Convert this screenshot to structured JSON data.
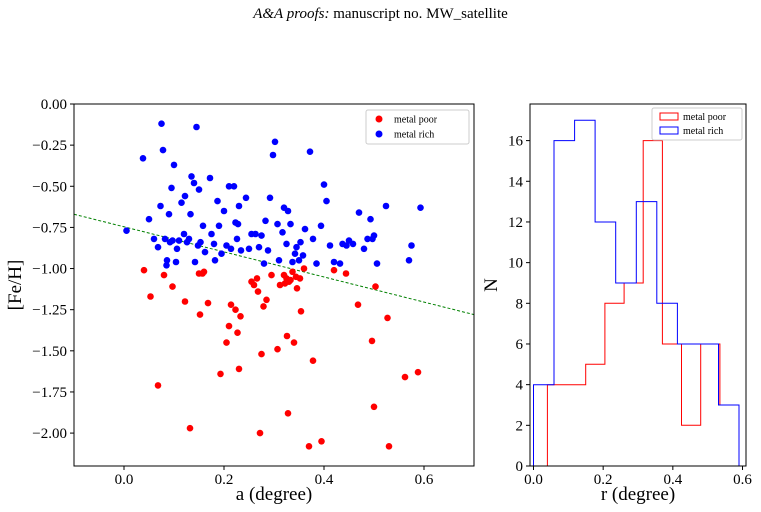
{
  "header": {
    "journal": "A&A proofs:",
    "manuscript": " manuscript no. MW_satellite"
  },
  "colors": {
    "poor": "#ff0000",
    "rich": "#0000ff",
    "fit": "#008000"
  },
  "chart_data": [
    {
      "type": "scatter",
      "title": "",
      "xlabel": "a (degree)",
      "ylabel": "[Fe/H]",
      "xlim": [
        -0.1,
        0.7
      ],
      "ylim": [
        -2.2,
        0.0
      ],
      "xticks": [
        0.0,
        0.2,
        0.4,
        0.6
      ],
      "xtick_labels": [
        "0.0",
        "0.2",
        "0.4",
        "0.6"
      ],
      "yticks": [
        0.0,
        -0.25,
        -0.5,
        -0.75,
        -1.0,
        -1.25,
        -1.5,
        -1.75,
        -2.0
      ],
      "ytick_labels": [
        "0.00",
        "−0.25",
        "−0.50",
        "−0.75",
        "−1.00",
        "−1.25",
        "−1.50",
        "−1.75",
        "−2.00"
      ],
      "legend_position": "top-right",
      "grid": false,
      "fit_line": {
        "style": "dashed",
        "x": [
          -0.1,
          0.7
        ],
        "y": [
          -0.67,
          -1.28
        ]
      },
      "series": [
        {
          "name": "metal poor",
          "color": "#ff0000",
          "points": [
            [
              0.04,
              -1.01
            ],
            [
              0.053,
              -1.17
            ],
            [
              0.068,
              -1.71
            ],
            [
              0.08,
              -1.04
            ],
            [
              0.097,
              -1.11
            ],
            [
              0.122,
              -1.2
            ],
            [
              0.132,
              -1.97
            ],
            [
              0.15,
              -1.03
            ],
            [
              0.152,
              -1.28
            ],
            [
              0.157,
              -1.03
            ],
            [
              0.16,
              -1.02
            ],
            [
              0.168,
              -1.21
            ],
            [
              0.193,
              -1.64
            ],
            [
              0.205,
              -1.45
            ],
            [
              0.21,
              -1.35
            ],
            [
              0.214,
              -1.22
            ],
            [
              0.223,
              -1.25
            ],
            [
              0.227,
              -1.39
            ],
            [
              0.23,
              -1.61
            ],
            [
              0.233,
              -1.29
            ],
            [
              0.255,
              -1.08
            ],
            [
              0.26,
              -1.1
            ],
            [
              0.266,
              -1.06
            ],
            [
              0.268,
              -1.14
            ],
            [
              0.272,
              -2.0
            ],
            [
              0.275,
              -1.52
            ],
            [
              0.279,
              -1.23
            ],
            [
              0.285,
              -1.19
            ],
            [
              0.295,
              -1.04
            ],
            [
              0.307,
              -1.49
            ],
            [
              0.312,
              -1.1
            ],
            [
              0.32,
              -1.04
            ],
            [
              0.322,
              -1.09
            ],
            [
              0.325,
              -1.06
            ],
            [
              0.326,
              -1.41
            ],
            [
              0.328,
              -1.88
            ],
            [
              0.33,
              -1.08
            ],
            [
              0.333,
              -1.07
            ],
            [
              0.337,
              -1.02
            ],
            [
              0.34,
              -1.45
            ],
            [
              0.344,
              -1.05
            ],
            [
              0.346,
              -1.12
            ],
            [
              0.352,
              -1.06
            ],
            [
              0.354,
              -1.26
            ],
            [
              0.36,
              -1.0
            ],
            [
              0.37,
              -2.08
            ],
            [
              0.378,
              -1.56
            ],
            [
              0.395,
              -2.05
            ],
            [
              0.42,
              -1.01
            ],
            [
              0.444,
              -1.03
            ],
            [
              0.468,
              -1.22
            ],
            [
              0.496,
              -1.44
            ],
            [
              0.5,
              -1.84
            ],
            [
              0.503,
              -1.11
            ],
            [
              0.527,
              -1.3
            ],
            [
              0.53,
              -2.08
            ],
            [
              0.562,
              -1.66
            ],
            [
              0.588,
              -1.63
            ]
          ]
        },
        {
          "name": "metal rich",
          "color": "#0000ff",
          "points": [
            [
              0.005,
              -0.77
            ],
            [
              0.038,
              -0.33
            ],
            [
              0.05,
              -0.7
            ],
            [
              0.06,
              -0.82
            ],
            [
              0.068,
              -0.87
            ],
            [
              0.073,
              -0.62
            ],
            [
              0.075,
              -0.12
            ],
            [
              0.078,
              -0.28
            ],
            [
              0.082,
              -0.82
            ],
            [
              0.085,
              -0.98
            ],
            [
              0.086,
              -0.95
            ],
            [
              0.09,
              -0.67
            ],
            [
              0.092,
              -0.84
            ],
            [
              0.095,
              -0.51
            ],
            [
              0.097,
              -0.83
            ],
            [
              0.1,
              -0.37
            ],
            [
              0.104,
              -0.96
            ],
            [
              0.106,
              -0.88
            ],
            [
              0.11,
              -0.83
            ],
            [
              0.115,
              -0.6
            ],
            [
              0.12,
              -0.79
            ],
            [
              0.122,
              -0.56
            ],
            [
              0.126,
              -0.84
            ],
            [
              0.13,
              -0.82
            ],
            [
              0.133,
              -0.67
            ],
            [
              0.135,
              -0.44
            ],
            [
              0.14,
              -0.48
            ],
            [
              0.142,
              -0.96
            ],
            [
              0.145,
              -0.14
            ],
            [
              0.148,
              -0.86
            ],
            [
              0.15,
              -0.52
            ],
            [
              0.153,
              -0.84
            ],
            [
              0.158,
              -0.74
            ],
            [
              0.162,
              -0.9
            ],
            [
              0.172,
              -0.45
            ],
            [
              0.175,
              -0.79
            ],
            [
              0.18,
              -0.85
            ],
            [
              0.182,
              -0.95
            ],
            [
              0.187,
              -0.59
            ],
            [
              0.19,
              -0.74
            ],
            [
              0.195,
              -0.91
            ],
            [
              0.2,
              -0.65
            ],
            [
              0.205,
              -0.86
            ],
            [
              0.21,
              -0.5
            ],
            [
              0.214,
              -0.88
            ],
            [
              0.22,
              -0.5
            ],
            [
              0.223,
              -0.72
            ],
            [
              0.226,
              -0.82
            ],
            [
              0.228,
              -0.73
            ],
            [
              0.23,
              -0.62
            ],
            [
              0.234,
              -0.89
            ],
            [
              0.244,
              -0.57
            ],
            [
              0.25,
              -0.88
            ],
            [
              0.255,
              -0.79
            ],
            [
              0.263,
              -0.79
            ],
            [
              0.27,
              -0.87
            ],
            [
              0.275,
              -0.8
            ],
            [
              0.28,
              -0.97
            ],
            [
              0.283,
              -0.71
            ],
            [
              0.288,
              -0.89
            ],
            [
              0.292,
              -0.57
            ],
            [
              0.298,
              -0.31
            ],
            [
              0.302,
              -0.23
            ],
            [
              0.307,
              -0.73
            ],
            [
              0.31,
              -0.95
            ],
            [
              0.317,
              -0.78
            ],
            [
              0.32,
              -0.63
            ],
            [
              0.325,
              -0.85
            ],
            [
              0.328,
              -0.65
            ],
            [
              0.333,
              -0.73
            ],
            [
              0.337,
              -0.96
            ],
            [
              0.342,
              -0.91
            ],
            [
              0.345,
              -0.87
            ],
            [
              0.35,
              -0.95
            ],
            [
              0.353,
              -0.84
            ],
            [
              0.358,
              -0.92
            ],
            [
              0.362,
              -0.76
            ],
            [
              0.372,
              -0.29
            ],
            [
              0.378,
              -0.82
            ],
            [
              0.385,
              -0.97
            ],
            [
              0.394,
              -0.74
            ],
            [
              0.4,
              -0.49
            ],
            [
              0.405,
              -0.59
            ],
            [
              0.412,
              -0.86
            ],
            [
              0.42,
              -0.96
            ],
            [
              0.432,
              -0.97
            ],
            [
              0.437,
              -0.85
            ],
            [
              0.445,
              -0.86
            ],
            [
              0.45,
              -0.83
            ],
            [
              0.458,
              -0.85
            ],
            [
              0.47,
              -0.66
            ],
            [
              0.48,
              -0.88
            ],
            [
              0.487,
              -0.82
            ],
            [
              0.493,
              -0.7
            ],
            [
              0.497,
              -0.82
            ],
            [
              0.5,
              -0.8
            ],
            [
              0.506,
              -0.97
            ],
            [
              0.524,
              -0.62
            ],
            [
              0.57,
              -0.95
            ],
            [
              0.575,
              -0.86
            ],
            [
              0.593,
              -0.63
            ]
          ]
        }
      ]
    },
    {
      "type": "histogram",
      "title": "",
      "xlabel": "r (degree)",
      "ylabel": "N",
      "xlim": [
        -0.01,
        0.61
      ],
      "ylim": [
        0,
        17.8
      ],
      "xticks": [
        0.0,
        0.2,
        0.4,
        0.6
      ],
      "xtick_labels": [
        "0.0",
        "0.2",
        "0.4",
        "0.6"
      ],
      "yticks": [
        0,
        2,
        4,
        6,
        8,
        10,
        12,
        14,
        16
      ],
      "ytick_labels": [
        "0",
        "2",
        "4",
        "6",
        "8",
        "10",
        "12",
        "14",
        "16"
      ],
      "legend_position": "top-right",
      "grid": false,
      "series": [
        {
          "name": "metal poor",
          "color": "#ff0000",
          "bin_edges": [
            0.04,
            0.095,
            0.15,
            0.205,
            0.26,
            0.315,
            0.37,
            0.425,
            0.48,
            0.535,
            0.59
          ],
          "counts": [
            4,
            4,
            5,
            8,
            9,
            16,
            6,
            2,
            6,
            3
          ]
        },
        {
          "name": "metal rich",
          "color": "#0000ff",
          "bin_edges": [
            0.0,
            0.059,
            0.118,
            0.177,
            0.236,
            0.295,
            0.354,
            0.413,
            0.472,
            0.531,
            0.59
          ],
          "counts": [
            4,
            16,
            17,
            12,
            9,
            13,
            8,
            6,
            6,
            3
          ]
        }
      ]
    }
  ]
}
